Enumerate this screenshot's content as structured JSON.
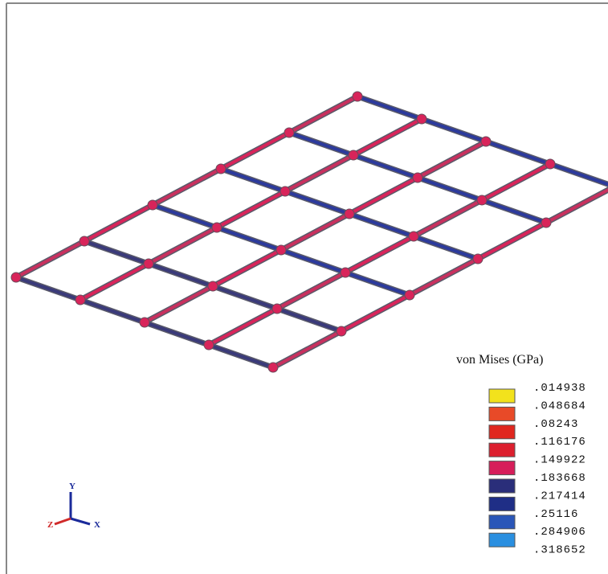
{
  "legend": {
    "title": "von Mises (GPa)",
    "labels": [
      ".014938",
      ".048684",
      ".08243",
      ".116176",
      ".149922",
      ".183668",
      ".217414",
      ".25116",
      ".284906",
      ".318652"
    ],
    "colors": [
      "#f2e21c",
      "#e84a28",
      "#e0261e",
      "#dc1f2e",
      "#d61e5a",
      "#2a2e7a",
      "#1f2e86",
      "#2a56b8",
      "#2a8fe0"
    ]
  },
  "triad": {
    "y": "Y",
    "z": "Z",
    "x": "X"
  }
}
